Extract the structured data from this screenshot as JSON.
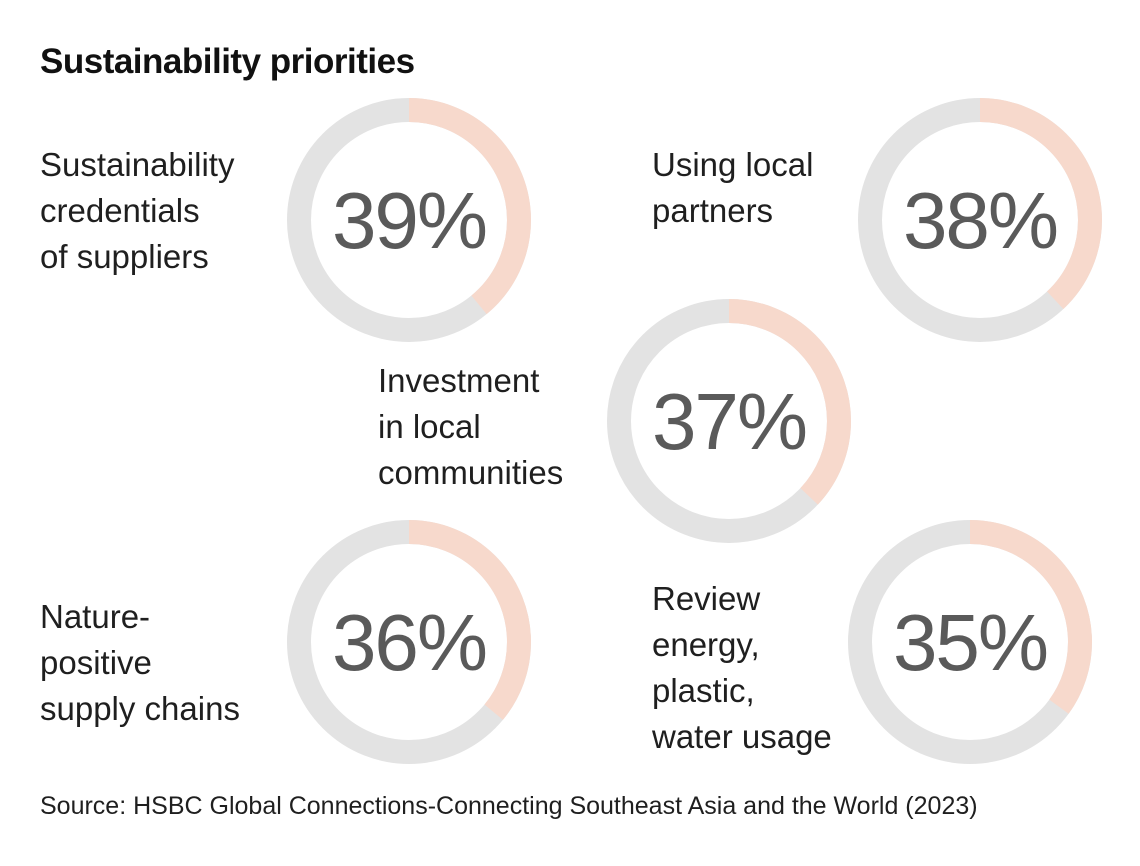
{
  "chart_data": {
    "type": "pie",
    "title": "Sustainability priorities",
    "track_color": "#e3e3e3",
    "fill_color": "#f7d9cc",
    "items": [
      {
        "label": "Sustainability credentials of suppliers",
        "label_lines": [
          "Sustainability",
          "credentials",
          "of suppliers"
        ],
        "value": 39,
        "value_label": "39%"
      },
      {
        "label": "Using local partners",
        "label_lines": [
          "Using local",
          "partners"
        ],
        "value": 38,
        "value_label": "38%"
      },
      {
        "label": "Investment in local communities",
        "label_lines": [
          "Investment",
          "in local",
          "communities"
        ],
        "value": 37,
        "value_label": "37%"
      },
      {
        "label": "Nature-positive supply chains",
        "label_lines": [
          "Nature-",
          "positive",
          "supply chains"
        ],
        "value": 36,
        "value_label": "36%"
      },
      {
        "label": "Review energy, plastic, water usage",
        "label_lines": [
          "Review",
          "energy,",
          "plastic,",
          "water usage"
        ],
        "value": 35,
        "value_label": "35%"
      }
    ]
  },
  "source": "Source: HSBC Global Connections-Connecting Southeast Asia and the World (2023)"
}
